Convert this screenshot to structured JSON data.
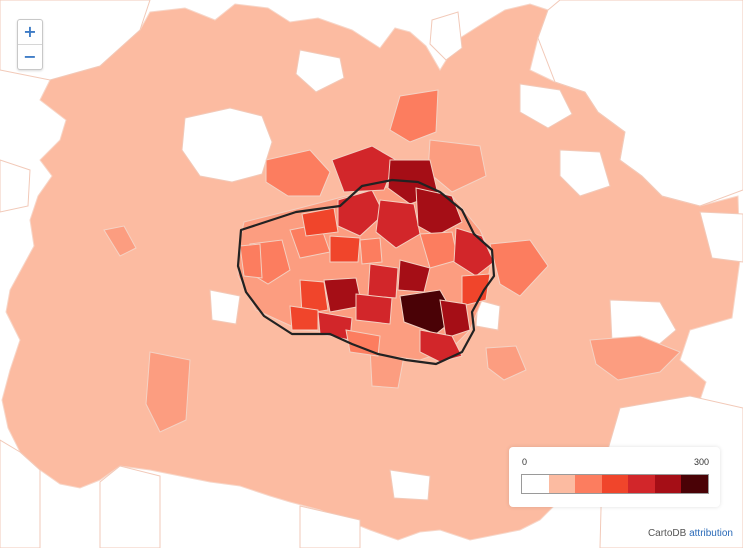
{
  "map": {
    "zoom": {
      "in_label": "+",
      "out_label": "−"
    },
    "legend": {
      "min_label": "0",
      "max_label": "300",
      "colors": [
        "#ffffff",
        "#fcbba1",
        "#fc7d5f",
        "#f0452b",
        "#d2262a",
        "#a50e16",
        "#4a0206"
      ]
    },
    "attribution": {
      "provider": "CartoDB",
      "link_label": "attribution"
    },
    "colors": {
      "background": "#ffffff",
      "base_fill": "#fcbba1",
      "district_borders": "#f6ddd3",
      "ring_outline": "#222222"
    }
  }
}
